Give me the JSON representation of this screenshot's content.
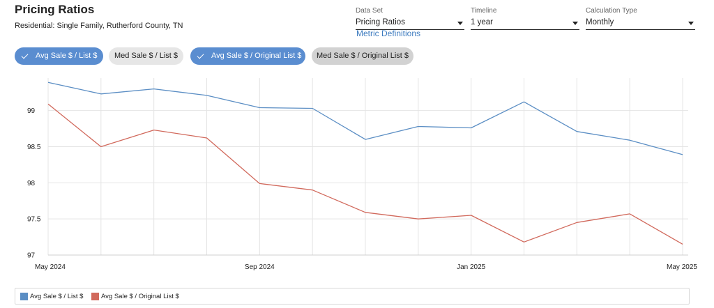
{
  "header": {
    "title": "Pricing Ratios",
    "subtitle": "Residential: Single Family, Rutherford County, TN"
  },
  "controls": {
    "data_set": {
      "label": "Data Set",
      "value": "Pricing Ratios"
    },
    "timeline": {
      "label": "Timeline",
      "value": "1 year"
    },
    "calc_type": {
      "label": "Calculation Type",
      "value": "Monthly"
    },
    "metric_link": "Metric Definitions"
  },
  "chips": [
    {
      "label": "Avg Sale $ / List $",
      "selected": true
    },
    {
      "label": "Med Sale $ / List $",
      "selected": false
    },
    {
      "label": "Avg Sale $ / Original List $",
      "selected": true
    },
    {
      "label": "Med Sale $ / Original List $",
      "selected": false
    }
  ],
  "colors": {
    "blue": "#5b8ec4",
    "red": "#d1695c",
    "chip_selected": "#5a8dd0"
  },
  "chart_data": {
    "type": "line",
    "x": [
      "May 2024",
      "Jun 2024",
      "Jul 2024",
      "Aug 2024",
      "Sep 2024",
      "Oct 2024",
      "Nov 2024",
      "Dec 2024",
      "Jan 2025",
      "Feb 2025",
      "Mar 2025",
      "Apr 2025",
      "May 2025"
    ],
    "x_tick_labels": [
      "May 2024",
      "Sep 2024",
      "Jan 2025",
      "May 2025"
    ],
    "series": [
      {
        "name": "Avg Sale $ / List $",
        "color": "#5b8ec4",
        "values": [
          99.39,
          99.23,
          99.3,
          99.21,
          99.04,
          99.03,
          98.6,
          98.78,
          98.76,
          99.12,
          98.71,
          98.59,
          98.39
        ]
      },
      {
        "name": "Avg Sale $ / Original List $",
        "color": "#d1695c",
        "values": [
          99.09,
          98.5,
          98.73,
          98.62,
          97.99,
          97.9,
          97.59,
          97.5,
          97.55,
          97.18,
          97.45,
          97.57,
          97.15
        ]
      }
    ],
    "ylim": [
      97,
      99.45
    ],
    "y_ticks": [
      97,
      97.5,
      98,
      98.5,
      99
    ],
    "grid": true,
    "legend_position": "bottom"
  }
}
